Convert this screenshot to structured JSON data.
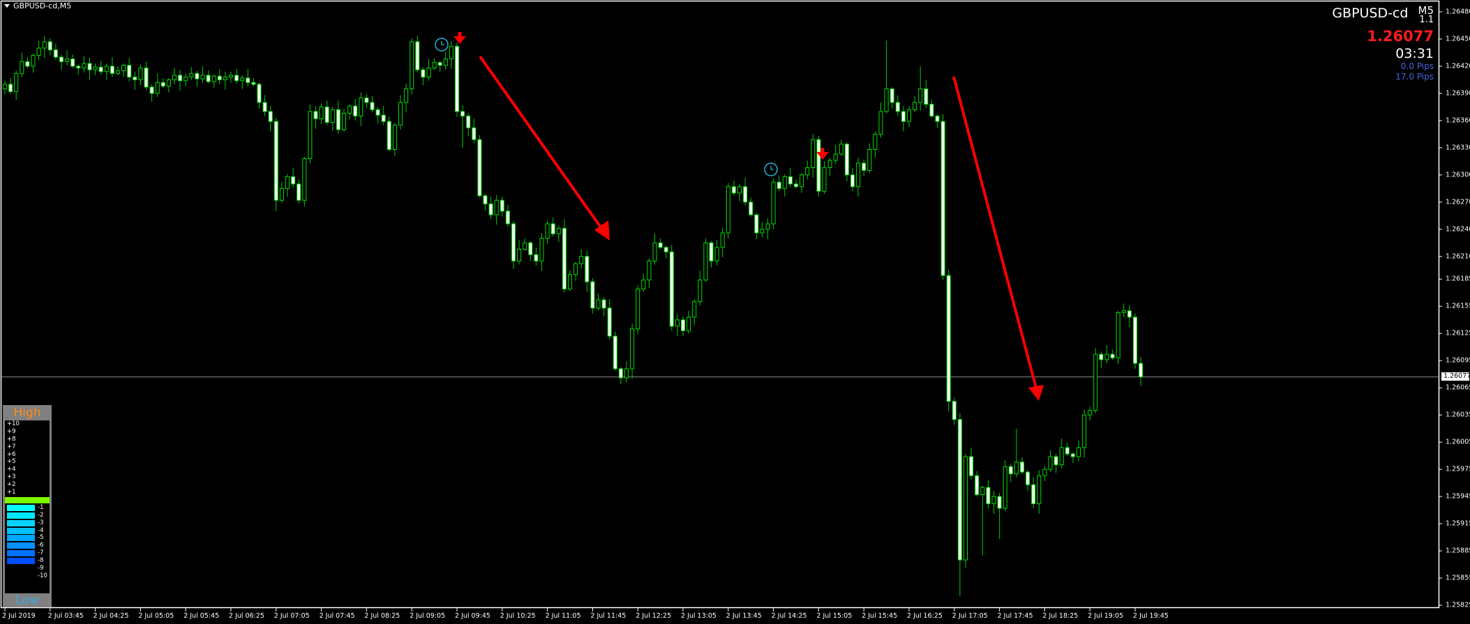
{
  "window": {
    "title": "GBPUSD-cd,M5"
  },
  "info": {
    "symbol": "GBPUSD-cd",
    "timeframe": "M5",
    "version": "1.1",
    "price": "1.26077",
    "countdown": "03:31",
    "pips_1": "0.0 Pips",
    "pips_2": "17.0 Pips",
    "price_color": "#ff1a1a",
    "pips_color": "#4a66e0"
  },
  "strength_panel": {
    "high_label": "High",
    "low_label": "Low",
    "positive": [
      "+10",
      "+9",
      "+8",
      "+7",
      "+6",
      "+5",
      "+4",
      "+3",
      "+2",
      "+1"
    ],
    "neutral_color": "#7cfc00",
    "negative": [
      {
        "label": "-1",
        "color": "#00ffff"
      },
      {
        "label": "-2",
        "color": "#00e8ff"
      },
      {
        "label": "-3",
        "color": "#00d4ff"
      },
      {
        "label": "-4",
        "color": "#00bfff"
      },
      {
        "label": "-5",
        "color": "#00a8ff"
      },
      {
        "label": "-6",
        "color": "#0090ff"
      },
      {
        "label": "-7",
        "color": "#0070ff"
      },
      {
        "label": "-8",
        "color": "#0050ff"
      },
      {
        "label": "-9",
        "color": null
      },
      {
        "label": "-10",
        "color": null
      }
    ]
  },
  "chart_data": {
    "type": "candlestick",
    "symbol": "GBPUSD-cd",
    "timeframe": "M5",
    "ylim": [
      1.25825,
      1.2648
    ],
    "y_ticks": [
      "1.26480",
      "1.26450",
      "1.26420",
      "1.26390",
      "1.26360",
      "1.26330",
      "1.26300",
      "1.26270",
      "1.26240",
      "1.26210",
      "1.26185",
      "1.26155",
      "1.26125",
      "1.26095",
      "1.26065",
      "1.26035",
      "1.26005",
      "1.25975",
      "1.25945",
      "1.25915",
      "1.25885",
      "1.25855",
      "1.25825"
    ],
    "x_ticks": [
      "2 Jul 2019",
      "2 Jul 03:45",
      "2 Jul 04:25",
      "2 Jul 05:05",
      "2 Jul 05:45",
      "2 Jul 06:25",
      "2 Jul 07:05",
      "2 Jul 07:45",
      "2 Jul 08:25",
      "2 Jul 09:05",
      "2 Jul 09:45",
      "2 Jul 10:25",
      "2 Jul 11:05",
      "2 Jul 11:45",
      "2 Jul 12:25",
      "2 Jul 13:05",
      "2 Jul 13:45",
      "2 Jul 14:25",
      "2 Jul 15:05",
      "2 Jul 15:45",
      "2 Jul 16:25",
      "2 Jul 17:05",
      "2 Jul 17:45",
      "2 Jul 18:25",
      "2 Jul 19:05",
      "2 Jul 19:45"
    ],
    "current_price": 1.26077,
    "colors": {
      "wick": "#00d000",
      "up_body": "#000000",
      "down_body": "#f0fff0",
      "outline": "#00e000",
      "current_line": "#8c8c8c",
      "arrow": "#ff0000",
      "clock": "#22b8d8"
    },
    "ohlc": [
      [
        1.26395,
        1.26404,
        1.26389,
        1.264
      ],
      [
        1.264,
        1.26407,
        1.26389,
        1.26392
      ],
      [
        1.26392,
        1.26415,
        1.26383,
        1.26412
      ],
      [
        1.26412,
        1.26435,
        1.26408,
        1.26425
      ],
      [
        1.26425,
        1.2643,
        1.26418,
        1.2642
      ],
      [
        1.2642,
        1.26434,
        1.26413,
        1.26432
      ],
      [
        1.26432,
        1.26448,
        1.26427,
        1.2644
      ],
      [
        1.2644,
        1.26453,
        1.26429,
        1.26447
      ],
      [
        1.26447,
        1.26451,
        1.26432,
        1.26438
      ],
      [
        1.26438,
        1.26445,
        1.26427,
        1.2643
      ],
      [
        1.2643,
        1.26433,
        1.26416,
        1.26425
      ],
      [
        1.26425,
        1.26438,
        1.26421,
        1.26428
      ],
      [
        1.26428,
        1.26433,
        1.26418,
        1.2642
      ],
      [
        1.2642,
        1.26422,
        1.26411,
        1.26418
      ],
      [
        1.26418,
        1.26431,
        1.26413,
        1.26423
      ],
      [
        1.26423,
        1.26429,
        1.26405,
        1.26416
      ],
      [
        1.26416,
        1.26423,
        1.2641,
        1.26419
      ],
      [
        1.26419,
        1.26426,
        1.26411,
        1.26414
      ],
      [
        1.26414,
        1.26423,
        1.26405,
        1.2642
      ],
      [
        1.2642,
        1.2643,
        1.26408,
        1.26412
      ],
      [
        1.26412,
        1.2642,
        1.2641,
        1.26415
      ],
      [
        1.26415,
        1.26423,
        1.26408,
        1.26421
      ],
      [
        1.26421,
        1.26429,
        1.26403,
        1.26408
      ],
      [
        1.26408,
        1.26414,
        1.26394,
        1.26405
      ],
      [
        1.26405,
        1.26422,
        1.26399,
        1.26418
      ],
      [
        1.26418,
        1.26425,
        1.26394,
        1.26397
      ],
      [
        1.26397,
        1.264,
        1.26381,
        1.2639
      ],
      [
        1.2639,
        1.26412,
        1.26386,
        1.26402
      ],
      [
        1.26402,
        1.26407,
        1.26396,
        1.26398
      ],
      [
        1.26398,
        1.26407,
        1.26391,
        1.26405
      ],
      [
        1.26405,
        1.26418,
        1.264,
        1.2641
      ],
      [
        1.2641,
        1.26416,
        1.26393,
        1.26404
      ],
      [
        1.26404,
        1.26412,
        1.26398,
        1.26408
      ],
      [
        1.26408,
        1.26419,
        1.26405,
        1.26412
      ],
      [
        1.26412,
        1.26415,
        1.26397,
        1.26406
      ],
      [
        1.26406,
        1.2642,
        1.26402,
        1.2641
      ],
      [
        1.2641,
        1.26415,
        1.26401,
        1.26403
      ],
      [
        1.26403,
        1.26411,
        1.26396,
        1.26409
      ],
      [
        1.26409,
        1.26417,
        1.264,
        1.26405
      ],
      [
        1.26405,
        1.26414,
        1.26394,
        1.26408
      ],
      [
        1.26408,
        1.26414,
        1.26402,
        1.2641
      ],
      [
        1.2641,
        1.26417,
        1.26401,
        1.26404
      ],
      [
        1.26404,
        1.2641,
        1.26395,
        1.26407
      ],
      [
        1.26407,
        1.26417,
        1.26398,
        1.26402
      ],
      [
        1.26402,
        1.26407,
        1.26398,
        1.264
      ],
      [
        1.264,
        1.26402,
        1.26373,
        1.2638
      ],
      [
        1.2638,
        1.26388,
        1.26365,
        1.2637
      ],
      [
        1.2637,
        1.26376,
        1.26348,
        1.26359
      ],
      [
        1.26359,
        1.26363,
        1.2626,
        1.26272
      ],
      [
        1.26272,
        1.26292,
        1.26269,
        1.26285
      ],
      [
        1.26285,
        1.26301,
        1.26276,
        1.26298
      ],
      [
        1.26298,
        1.26308,
        1.26286,
        1.2629
      ],
      [
        1.2629,
        1.26295,
        1.26268,
        1.26272
      ],
      [
        1.26272,
        1.2632,
        1.26265,
        1.26318
      ],
      [
        1.26318,
        1.26378,
        1.26313,
        1.2637
      ],
      [
        1.2637,
        1.26376,
        1.26351,
        1.26362
      ],
      [
        1.26362,
        1.26379,
        1.26356,
        1.26375
      ],
      [
        1.26375,
        1.26382,
        1.26355,
        1.26358
      ],
      [
        1.26358,
        1.26375,
        1.26349,
        1.26372
      ],
      [
        1.26372,
        1.26382,
        1.26346,
        1.2635
      ],
      [
        1.2635,
        1.26373,
        1.26348,
        1.26368
      ],
      [
        1.26368,
        1.26378,
        1.26361,
        1.26376
      ],
      [
        1.26376,
        1.26384,
        1.2636,
        1.26365
      ],
      [
        1.26365,
        1.26391,
        1.26354,
        1.26385
      ],
      [
        1.26385,
        1.26389,
        1.26374,
        1.2638
      ],
      [
        1.2638,
        1.26387,
        1.26369,
        1.26372
      ],
      [
        1.26372,
        1.26375,
        1.26357,
        1.26366
      ],
      [
        1.26366,
        1.26376,
        1.26355,
        1.26359
      ],
      [
        1.26359,
        1.26364,
        1.26326,
        1.26328
      ],
      [
        1.26328,
        1.26357,
        1.26321,
        1.26355
      ],
      [
        1.26355,
        1.26388,
        1.2635,
        1.2638
      ],
      [
        1.2638,
        1.26401,
        1.26369,
        1.26395
      ],
      [
        1.26395,
        1.26451,
        1.26389,
        1.26447
      ],
      [
        1.26447,
        1.26454,
        1.26413,
        1.26416
      ],
      [
        1.26416,
        1.26419,
        1.26399,
        1.26408
      ],
      [
        1.26408,
        1.26428,
        1.26404,
        1.26418
      ],
      [
        1.26418,
        1.26429,
        1.26416,
        1.26424
      ],
      [
        1.26424,
        1.26426,
        1.26414,
        1.26421
      ],
      [
        1.26421,
        1.26436,
        1.26416,
        1.26428
      ],
      [
        1.26428,
        1.26448,
        1.26417,
        1.26442
      ],
      [
        1.26442,
        1.26446,
        1.26364,
        1.2637
      ],
      [
        1.2637,
        1.26377,
        1.2633,
        1.26365
      ],
      [
        1.26365,
        1.26368,
        1.26343,
        1.26352
      ],
      [
        1.26352,
        1.26362,
        1.26335,
        1.26339
      ],
      [
        1.26339,
        1.26344,
        1.26275,
        1.26277
      ],
      [
        1.26277,
        1.26279,
        1.26261,
        1.26268
      ],
      [
        1.26268,
        1.26276,
        1.26251,
        1.26256
      ],
      [
        1.26256,
        1.26278,
        1.26245,
        1.26272
      ],
      [
        1.26272,
        1.26276,
        1.26254,
        1.2626
      ],
      [
        1.2626,
        1.26267,
        1.26243,
        1.26246
      ],
      [
        1.26246,
        1.26249,
        1.26196,
        1.26205
      ],
      [
        1.26205,
        1.26228,
        1.26201,
        1.26218
      ],
      [
        1.26218,
        1.2623,
        1.26216,
        1.26225
      ],
      [
        1.26225,
        1.26227,
        1.26205,
        1.26212
      ],
      [
        1.26212,
        1.2622,
        1.262,
        1.26205
      ],
      [
        1.26205,
        1.26236,
        1.26194,
        1.2623
      ],
      [
        1.2623,
        1.2625,
        1.26224,
        1.26246
      ],
      [
        1.26246,
        1.26253,
        1.26232,
        1.26235
      ],
      [
        1.26235,
        1.26244,
        1.26226,
        1.26241
      ],
      [
        1.26241,
        1.26251,
        1.2617,
        1.26174
      ],
      [
        1.26174,
        1.26195,
        1.26172,
        1.2619
      ],
      [
        1.2619,
        1.26204,
        1.26183,
        1.26202
      ],
      [
        1.26202,
        1.26218,
        1.26197,
        1.2621
      ],
      [
        1.2621,
        1.26216,
        1.26171,
        1.26182
      ],
      [
        1.26182,
        1.26186,
        1.26147,
        1.26153
      ],
      [
        1.26153,
        1.26169,
        1.2615,
        1.26162
      ],
      [
        1.26162,
        1.26165,
        1.26144,
        1.26153
      ],
      [
        1.26153,
        1.26163,
        1.26118,
        1.26122
      ],
      [
        1.26122,
        1.26127,
        1.26084,
        1.26086
      ],
      [
        1.26086,
        1.26088,
        1.26069,
        1.26076
      ],
      [
        1.26076,
        1.26094,
        1.26071,
        1.26086
      ],
      [
        1.26086,
        1.26136,
        1.26075,
        1.2613
      ],
      [
        1.2613,
        1.26178,
        1.26124,
        1.26174
      ],
      [
        1.26174,
        1.26191,
        1.26171,
        1.26184
      ],
      [
        1.26184,
        1.26208,
        1.26175,
        1.26205
      ],
      [
        1.26205,
        1.26235,
        1.26201,
        1.26225
      ],
      [
        1.26225,
        1.2623,
        1.26218,
        1.2622
      ],
      [
        1.2622,
        1.26222,
        1.26208,
        1.26215
      ],
      [
        1.26215,
        1.26223,
        1.26128,
        1.26133
      ],
      [
        1.26133,
        1.26146,
        1.26122,
        1.2614
      ],
      [
        1.2614,
        1.26144,
        1.26122,
        1.26128
      ],
      [
        1.26128,
        1.2615,
        1.26125,
        1.26143
      ],
      [
        1.26143,
        1.26163,
        1.26134,
        1.2616
      ],
      [
        1.2616,
        1.26194,
        1.26156,
        1.26184
      ],
      [
        1.26184,
        1.2623,
        1.26182,
        1.26225
      ],
      [
        1.26225,
        1.26227,
        1.26198,
        1.26205
      ],
      [
        1.26205,
        1.26228,
        1.262,
        1.2622
      ],
      [
        1.2622,
        1.26242,
        1.26209,
        1.26236
      ],
      [
        1.26236,
        1.26291,
        1.2623,
        1.26287
      ],
      [
        1.26287,
        1.26294,
        1.26277,
        1.2628
      ],
      [
        1.2628,
        1.2629,
        1.26271,
        1.26287
      ],
      [
        1.26287,
        1.26297,
        1.26266,
        1.2627
      ],
      [
        1.2627,
        1.26275,
        1.26254,
        1.26256
      ],
      [
        1.26256,
        1.26258,
        1.26229,
        1.26236
      ],
      [
        1.26236,
        1.26248,
        1.26231,
        1.2624
      ],
      [
        1.2624,
        1.26252,
        1.26229,
        1.26246
      ],
      [
        1.26246,
        1.26296,
        1.2624,
        1.26292
      ],
      [
        1.26292,
        1.26299,
        1.26282,
        1.26285
      ],
      [
        1.26285,
        1.26301,
        1.26276,
        1.26298
      ],
      [
        1.26298,
        1.26308,
        1.26286,
        1.2629
      ],
      [
        1.2629,
        1.26295,
        1.26285,
        1.26287
      ],
      [
        1.26287,
        1.26302,
        1.2628,
        1.263
      ],
      [
        1.263,
        1.26316,
        1.26295,
        1.26308
      ],
      [
        1.26308,
        1.26345,
        1.26297,
        1.26339
      ],
      [
        1.26339,
        1.26343,
        1.26276,
        1.26282
      ],
      [
        1.26282,
        1.26315,
        1.26279,
        1.26308
      ],
      [
        1.26308,
        1.26319,
        1.26299,
        1.26316
      ],
      [
        1.26316,
        1.26333,
        1.26312,
        1.26323
      ],
      [
        1.26323,
        1.26339,
        1.26321,
        1.26334
      ],
      [
        1.26334,
        1.26336,
        1.26293,
        1.263
      ],
      [
        1.263,
        1.26308,
        1.26282,
        1.26287
      ],
      [
        1.26287,
        1.26319,
        1.26276,
        1.26313
      ],
      [
        1.26313,
        1.26317,
        1.26299,
        1.26305
      ],
      [
        1.26305,
        1.26335,
        1.26302,
        1.26328
      ],
      [
        1.26328,
        1.26348,
        1.26319,
        1.26345
      ],
      [
        1.26345,
        1.2638,
        1.26341,
        1.2637
      ],
      [
        1.2637,
        1.26448,
        1.26368,
        1.26395
      ],
      [
        1.26395,
        1.26397,
        1.26373,
        1.2638
      ],
      [
        1.2638,
        1.26388,
        1.26365,
        1.2637
      ],
      [
        1.2637,
        1.26376,
        1.26348,
        1.26359
      ],
      [
        1.26359,
        1.26376,
        1.26353,
        1.26372
      ],
      [
        1.26372,
        1.26387,
        1.26369,
        1.2638
      ],
      [
        1.2638,
        1.2642,
        1.26371,
        1.26395
      ],
      [
        1.26395,
        1.26405,
        1.26374,
        1.26378
      ],
      [
        1.26378,
        1.26383,
        1.26363,
        1.26365
      ],
      [
        1.26365,
        1.26367,
        1.26352,
        1.26359
      ],
      [
        1.26359,
        1.26367,
        1.26184,
        1.26189
      ],
      [
        1.26189,
        1.26195,
        1.26039,
        1.2605
      ],
      [
        1.2605,
        1.26054,
        1.26024,
        1.2603
      ],
      [
        1.2603,
        1.26037,
        1.25835,
        1.25875
      ],
      [
        1.25875,
        1.25992,
        1.25866,
        1.25989
      ],
      [
        1.25989,
        1.25999,
        1.25964,
        1.25968
      ],
      [
        1.25968,
        1.25973,
        1.25945,
        1.25947
      ],
      [
        1.25947,
        1.25957,
        1.2588,
        1.25955
      ],
      [
        1.25955,
        1.25963,
        1.25932,
        1.25937
      ],
      [
        1.25937,
        1.25951,
        1.25926,
        1.25945
      ],
      [
        1.25945,
        1.25949,
        1.25898,
        1.25932
      ],
      [
        1.25932,
        1.25985,
        1.25929,
        1.25978
      ],
      [
        1.25978,
        1.25981,
        1.25961,
        1.2597
      ],
      [
        1.2597,
        1.2602,
        1.25966,
        1.25983
      ],
      [
        1.25983,
        1.25988,
        1.2597,
        1.25972
      ],
      [
        1.25972,
        1.25974,
        1.25951,
        1.25958
      ],
      [
        1.25958,
        1.25966,
        1.25932,
        1.25937
      ],
      [
        1.25937,
        1.25974,
        1.25926,
        1.25968
      ],
      [
        1.25968,
        1.25979,
        1.25962,
        1.25975
      ],
      [
        1.25975,
        1.25996,
        1.25972,
        1.25989
      ],
      [
        1.25989,
        1.25992,
        1.25971,
        1.2598
      ],
      [
        1.2598,
        1.26009,
        1.25976,
        1.25999
      ],
      [
        1.25999,
        1.26004,
        1.2599,
        1.25992
      ],
      [
        1.25992,
        1.25994,
        1.25982,
        1.25989
      ],
      [
        1.25989,
        1.26007,
        1.25984,
        1.25999
      ],
      [
        1.25999,
        1.26041,
        1.25988,
        1.26035
      ],
      [
        1.26035,
        1.26044,
        1.26029,
        1.2604
      ],
      [
        1.2604,
        1.26109,
        1.26037,
        1.26102
      ],
      [
        1.26102,
        1.26105,
        1.26087,
        1.26096
      ],
      [
        1.26096,
        1.26112,
        1.26092,
        1.26102
      ],
      [
        1.26102,
        1.26107,
        1.26096,
        1.26098
      ],
      [
        1.26098,
        1.2615,
        1.26091,
        1.26148
      ],
      [
        1.26148,
        1.26158,
        1.26143,
        1.2615
      ],
      [
        1.2615,
        1.26156,
        1.26132,
        1.26143
      ],
      [
        1.26143,
        1.26147,
        1.26086,
        1.26092
      ],
      [
        1.26092,
        1.26099,
        1.26067,
        1.26077
      ]
    ]
  }
}
